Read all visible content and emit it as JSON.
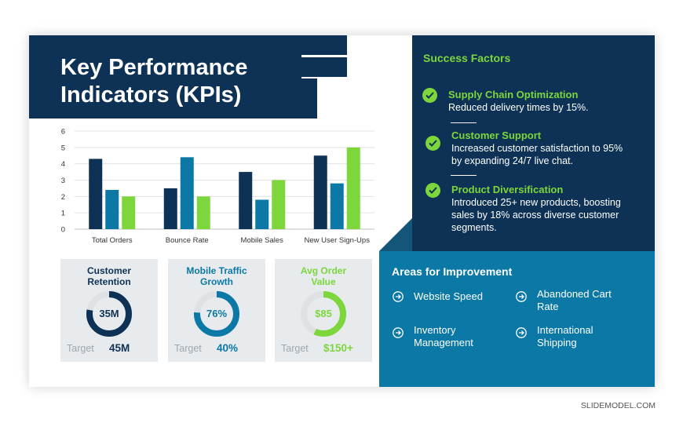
{
  "title": {
    "line1": "Key Performance",
    "line2": "Indicators (KPIs)"
  },
  "colors": {
    "navy": "#0e3256",
    "blue": "#0b78a6",
    "green": "#7dd63b"
  },
  "chart_data": {
    "type": "bar",
    "categories": [
      "Total Orders",
      "Bounce Rate",
      "Mobile Sales",
      "New User Sign-Ups"
    ],
    "series": [
      {
        "values": [
          4.3,
          2.5,
          3.5,
          4.5
        ],
        "color": "#0e3256"
      },
      {
        "values": [
          2.4,
          4.4,
          1.8,
          2.8
        ],
        "color": "#0b78a6"
      },
      {
        "values": [
          2.0,
          2.0,
          3.0,
          5.0
        ],
        "color": "#7dd63b"
      }
    ],
    "ylim": [
      0,
      6
    ],
    "yticks": [
      "0",
      "1",
      "2",
      "3",
      "4",
      "5",
      "6"
    ],
    "grid": true
  },
  "kpi_cards": [
    {
      "title1": "Customer",
      "title2": "Retention",
      "value": "35M",
      "fraction": 0.78,
      "target_label": "Target",
      "target_value": "45M",
      "color": "#0e3256"
    },
    {
      "title1": "Mobile Traffic",
      "title2": "Growth",
      "value": "76%",
      "fraction": 0.76,
      "target_label": "Target",
      "target_value": "40%",
      "color": "#0b78a6"
    },
    {
      "title1": "Avg Order",
      "title2": "Value",
      "value": "$85",
      "fraction": 0.57,
      "target_label": "Target",
      "target_value": "$150+",
      "color": "#7dd63b"
    }
  ],
  "success_factors": {
    "title": "Success Factors",
    "icon": "check-circle-icon",
    "items": [
      {
        "heading": "Supply Chain Optimization",
        "l1": "Reduced delivery times by 15%."
      },
      {
        "heading": "Customer Support",
        "l1": "Increased customer satisfaction to 95%",
        "l2": "by expanding 24/7 live chat."
      },
      {
        "heading": "Product Diversification",
        "l1": "Introduced 25+ new products, boosting",
        "l2": "sales by 18% across diverse customer",
        "l3": "segments."
      }
    ]
  },
  "areas_for_improvement": {
    "title": "Areas for Improvement",
    "icon": "arrow-circle-icon",
    "items": [
      {
        "l1": "Website Speed"
      },
      {
        "l1": "Abandoned Cart",
        "l2": "Rate"
      },
      {
        "l1": "Inventory",
        "l2": "Management"
      },
      {
        "l1": "International",
        "l2": "Shipping"
      }
    ]
  },
  "footer": "SLIDEMODEL.COM"
}
